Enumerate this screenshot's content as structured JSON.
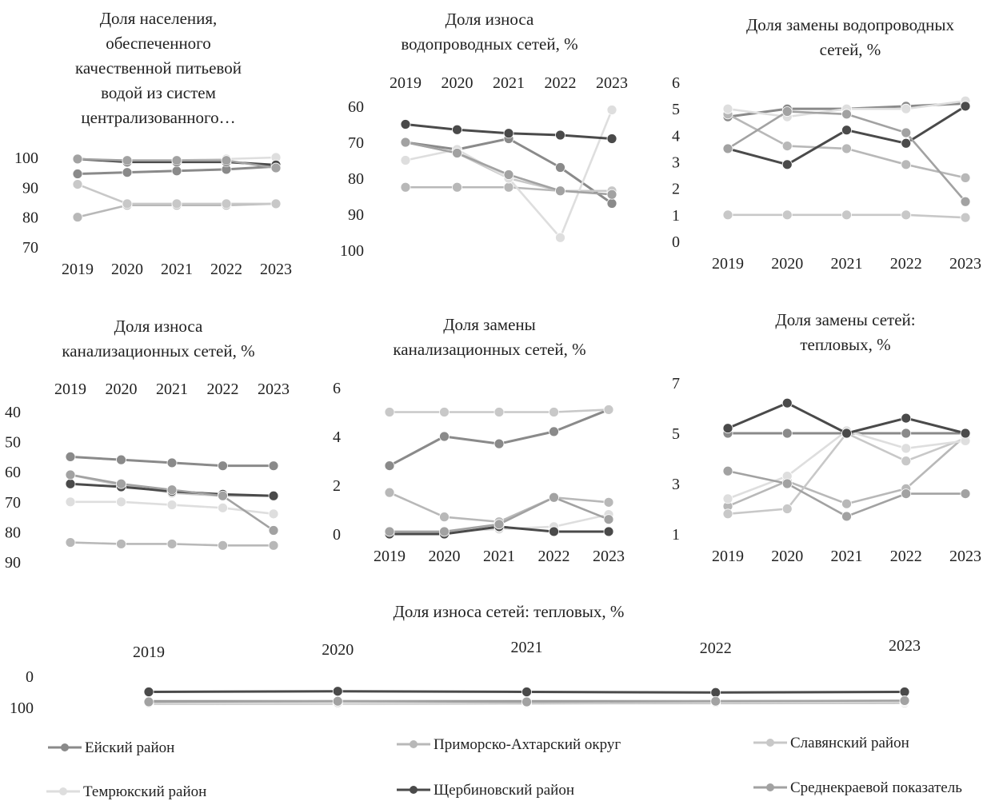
{
  "colors": {
    "eysk": "#8a8a8a",
    "primorsko": "#b8b8b8",
    "slavyansk": "#c8c8c8",
    "temryuk": "#dedede",
    "shcherbinovsk": "#4a4a4a",
    "average": "#a2a2a2"
  },
  "legend": [
    {
      "key": "eysk",
      "label": "Ейский район"
    },
    {
      "key": "primorsko",
      "label": "Приморско-Ахтарский округ"
    },
    {
      "key": "slavyansk",
      "label": "Славянский район"
    },
    {
      "key": "temryuk",
      "label": "Темрюкский район"
    },
    {
      "key": "shcherbinovsk",
      "label": "Щербиновский район"
    },
    {
      "key": "average",
      "label": "Среднекраевой показатель"
    }
  ],
  "chart_data": [
    {
      "type": "line",
      "title_lines": [
        "Доля населения,",
        "обеспеченного",
        "качественной питьевой",
        "водой из систем",
        "централизованного…"
      ],
      "categories": [
        "2019",
        "2020",
        "2021",
        "2022",
        "2023"
      ],
      "yticks": [
        "100",
        "90",
        "80",
        "70"
      ],
      "ylim": [
        70,
        100
      ],
      "reverse": false,
      "xaxis_position": "bottom",
      "series": [
        {
          "key": "eysk",
          "values": [
            94.5,
            95,
            95.5,
            96,
            97
          ]
        },
        {
          "key": "primorsko",
          "values": [
            80,
            84,
            84,
            84,
            84.5
          ]
        },
        {
          "key": "slavyansk",
          "values": [
            91,
            84.5,
            84.5,
            84.5,
            84.5
          ]
        },
        {
          "key": "temryuk",
          "values": [
            99.5,
            99,
            99,
            99.5,
            100
          ]
        },
        {
          "key": "shcherbinovsk",
          "values": [
            99.5,
            98.5,
            98.5,
            98.5,
            97.5
          ]
        },
        {
          "key": "average",
          "values": [
            99.5,
            99,
            99,
            99,
            96.5
          ]
        }
      ]
    },
    {
      "type": "line",
      "title_lines": [
        "Доля износа",
        "водопроводных сетей, %"
      ],
      "categories": [
        "2019",
        "2020",
        "2021",
        "2022",
        "2023"
      ],
      "yticks": [
        "60",
        "70",
        "80",
        "90",
        "100"
      ],
      "ylim": [
        60,
        100
      ],
      "reverse": true,
      "xaxis_position": "top",
      "series": [
        {
          "key": "eysk",
          "values": [
            70,
            72,
            69,
            77,
            87
          ]
        },
        {
          "key": "primorsko",
          "values": [
            82.5,
            82.5,
            82.5,
            83.5,
            83.5
          ]
        },
        {
          "key": "slavyansk",
          "values": [
            70,
            73,
            80,
            83.5,
            83.5
          ]
        },
        {
          "key": "temryuk",
          "values": [
            75,
            72,
            80,
            96.5,
            61
          ]
        },
        {
          "key": "shcherbinovsk",
          "values": [
            65,
            66.5,
            67.5,
            68,
            69
          ]
        },
        {
          "key": "average",
          "values": [
            70,
            73,
            79,
            83.5,
            84.5
          ]
        }
      ]
    },
    {
      "type": "line",
      "title_lines": [
        "Доля замены водопроводных",
        "сетей, %"
      ],
      "categories": [
        "2019",
        "2020",
        "2021",
        "2022",
        "2023"
      ],
      "yticks": [
        "6",
        "5",
        "4",
        "3",
        "2",
        "1",
        "0"
      ],
      "ylim": [
        0,
        6
      ],
      "reverse": false,
      "xaxis_position": "bottom",
      "series": [
        {
          "key": "eysk",
          "values": [
            4.7,
            5,
            5,
            5.1,
            5.2
          ]
        },
        {
          "key": "primorsko",
          "values": [
            4.8,
            3.6,
            3.5,
            2.9,
            2.4
          ]
        },
        {
          "key": "slavyansk",
          "values": [
            1,
            1,
            1,
            1,
            0.9
          ]
        },
        {
          "key": "temryuk",
          "values": [
            5,
            4.7,
            5,
            5,
            5.3
          ]
        },
        {
          "key": "shcherbinovsk",
          "values": [
            3.5,
            2.9,
            4.2,
            3.7,
            5.1
          ]
        },
        {
          "key": "average",
          "values": [
            3.5,
            4.9,
            4.8,
            4.1,
            1.5
          ]
        }
      ]
    },
    {
      "type": "line",
      "title_lines": [
        "Доля износа",
        "канализационных сетей, %"
      ],
      "categories": [
        "2019",
        "2020",
        "2021",
        "2022",
        "2023"
      ],
      "yticks": [
        "40",
        "50",
        "60",
        "70",
        "80",
        "90"
      ],
      "ylim": [
        40,
        90
      ],
      "reverse": true,
      "xaxis_position": "top",
      "series": [
        {
          "key": "eysk",
          "values": [
            55,
            56,
            57,
            58,
            58
          ]
        },
        {
          "key": "primorsko",
          "values": [
            83.5,
            84,
            84,
            84.5,
            84.5
          ]
        },
        {
          "key": "slavyansk",
          "values": [
            61,
            64.5,
            67,
            68,
            68
          ]
        },
        {
          "key": "temryuk",
          "values": [
            70,
            70,
            71,
            72,
            74
          ]
        },
        {
          "key": "shcherbinovsk",
          "values": [
            64,
            65,
            66.5,
            67.5,
            68
          ]
        },
        {
          "key": "average",
          "values": [
            61,
            64,
            66,
            68,
            79.5
          ]
        }
      ]
    },
    {
      "type": "line",
      "title_lines": [
        "Доля замены",
        "канализационных сетей, %"
      ],
      "categories": [
        "2019",
        "2020",
        "2021",
        "2022",
        "2023"
      ],
      "yticks": [
        "6",
        "4",
        "2",
        "0"
      ],
      "ylim": [
        0,
        6
      ],
      "reverse": false,
      "xaxis_position": "bottom",
      "series": [
        {
          "key": "eysk",
          "values": [
            2.8,
            4,
            3.7,
            4.2,
            5.1
          ]
        },
        {
          "key": "primorsko",
          "values": [
            1.7,
            0.7,
            0.5,
            1.5,
            1.3
          ]
        },
        {
          "key": "slavyansk",
          "values": [
            5,
            5,
            5,
            5,
            5.1
          ]
        },
        {
          "key": "temryuk",
          "values": [
            0,
            0.1,
            0.2,
            0.3,
            0.8
          ]
        },
        {
          "key": "shcherbinovsk",
          "values": [
            0,
            0,
            0.3,
            0.1,
            0.1
          ]
        },
        {
          "key": "average",
          "values": [
            0.1,
            0.1,
            0.4,
            1.5,
            0.6
          ]
        }
      ]
    },
    {
      "type": "line",
      "title_lines": [
        "Доля замены сетей:",
        "тепловых, %"
      ],
      "categories": [
        "2019",
        "2020",
        "2021",
        "2022",
        "2023"
      ],
      "yticks": [
        "7",
        "5",
        "3",
        "1"
      ],
      "ylim": [
        1,
        7
      ],
      "reverse": false,
      "xaxis_position": "bottom",
      "series": [
        {
          "key": "eysk",
          "values": [
            5,
            5,
            5,
            5,
            5
          ]
        },
        {
          "key": "primorsko",
          "values": [
            2.1,
            3.1,
            2.2,
            2.8,
            4.9
          ]
        },
        {
          "key": "slavyansk",
          "values": [
            1.8,
            2,
            5,
            3.9,
            4.8
          ]
        },
        {
          "key": "temryuk",
          "values": [
            2.4,
            3.3,
            5.1,
            4.4,
            4.7
          ]
        },
        {
          "key": "shcherbinovsk",
          "values": [
            5.2,
            6.2,
            5,
            5.6,
            5
          ]
        },
        {
          "key": "average",
          "values": [
            3.5,
            3,
            1.7,
            2.6,
            2.6
          ]
        }
      ]
    },
    {
      "type": "line",
      "title_lines": [
        "Доля износа сетей: тепловых, %"
      ],
      "categories": [
        "2019",
        "2020",
        "2021",
        "2022",
        "2023"
      ],
      "yticks": [
        "0",
        "100"
      ],
      "ylim": [
        0,
        100
      ],
      "reverse": true,
      "xaxis_position": "top",
      "series": [
        {
          "key": "eysk",
          "values": [
            80,
            80,
            80,
            80,
            80
          ]
        },
        {
          "key": "primorsko",
          "values": [
            88,
            88,
            87,
            86,
            85
          ]
        },
        {
          "key": "slavyansk",
          "values": [
            86,
            87,
            85,
            84,
            82
          ]
        },
        {
          "key": "temryuk",
          "values": [
            85,
            85,
            84,
            83,
            81
          ]
        },
        {
          "key": "shcherbinovsk",
          "values": [
            50,
            48,
            50,
            52,
            50
          ]
        },
        {
          "key": "average",
          "values": [
            82,
            80,
            82,
            80,
            78
          ]
        }
      ]
    }
  ]
}
